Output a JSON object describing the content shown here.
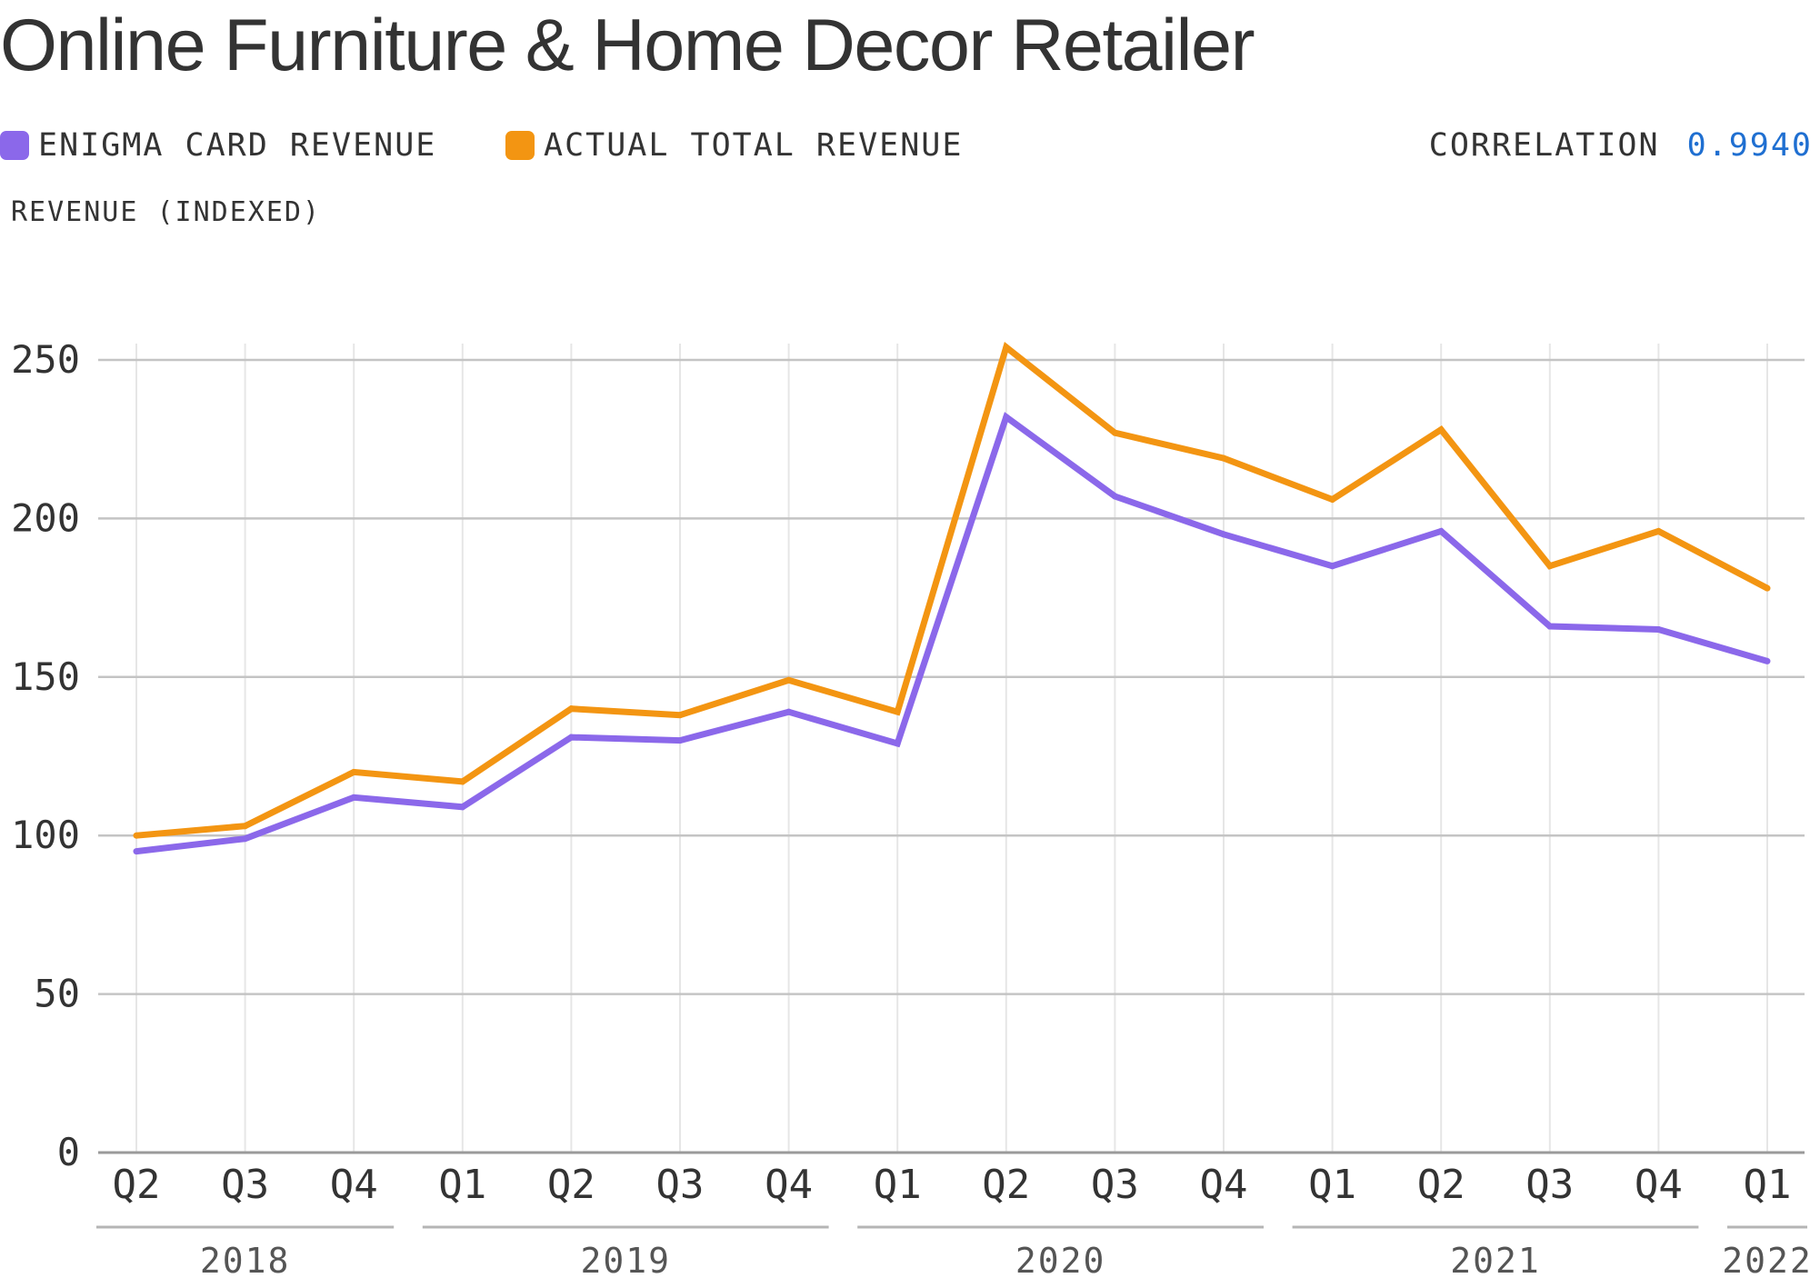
{
  "title": "Online Furniture & Home Decor Retailer",
  "legend": [
    {
      "label": "ENIGMA CARD REVENUE",
      "color": "#8b68ea"
    },
    {
      "label": "ACTUAL TOTAL REVENUE",
      "color": "#f39512"
    }
  ],
  "correlation": {
    "label": "CORRELATION",
    "value": "0.9940",
    "value_color": "#1f6fd1"
  },
  "chart_data": {
    "type": "line",
    "ylabel": "REVENUE (INDEXED)",
    "ylim": [
      0,
      250
    ],
    "yticks": [
      "0",
      "50",
      "100",
      "150",
      "200",
      "250"
    ],
    "categories": [
      "Q2",
      "Q3",
      "Q4",
      "Q1",
      "Q2",
      "Q3",
      "Q4",
      "Q1",
      "Q2",
      "Q3",
      "Q4",
      "Q1",
      "Q2",
      "Q3",
      "Q4",
      "Q1"
    ],
    "year_groups": [
      {
        "label": "2018",
        "start": 0,
        "end": 2
      },
      {
        "label": "2019",
        "start": 3,
        "end": 6
      },
      {
        "label": "2020",
        "start": 7,
        "end": 10
      },
      {
        "label": "2021",
        "start": 11,
        "end": 14
      },
      {
        "label": "2022",
        "start": 15,
        "end": 15
      }
    ],
    "grid": true,
    "series": [
      {
        "name": "ENIGMA CARD REVENUE",
        "color": "#8b68ea",
        "values": [
          95,
          99,
          112,
          109,
          131,
          130,
          139,
          129,
          232,
          207,
          195,
          185,
          196,
          166,
          165,
          155
        ]
      },
      {
        "name": "ACTUAL TOTAL REVENUE",
        "color": "#f39512",
        "values": [
          100,
          103,
          120,
          117,
          140,
          138,
          149,
          139,
          254,
          227,
          219,
          206,
          228,
          185,
          196,
          178
        ]
      }
    ]
  }
}
